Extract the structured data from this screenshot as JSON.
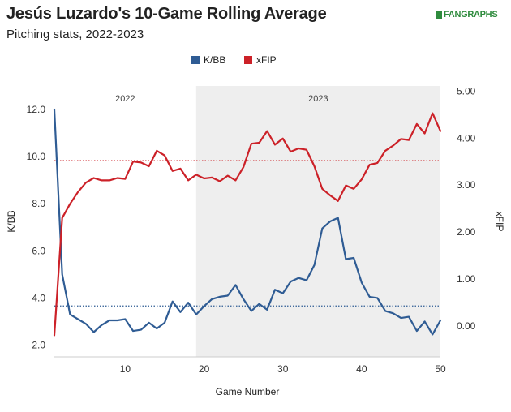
{
  "header": {
    "title": "Jesús Luzardo's 10-Game Rolling Average",
    "subtitle": "Pitching stats, 2022-2023",
    "brand": "FANGRAPHS"
  },
  "colors": {
    "kbb": "#2f5c94",
    "xfip": "#cc2128",
    "season_2023_shade": "#eeeeee"
  },
  "chart_data": {
    "type": "line",
    "xlabel": "Game Number",
    "ylabel_left": "K/BB",
    "ylabel_right": "xFIP",
    "x_ticks": [
      10,
      20,
      30,
      40,
      50
    ],
    "x_range": [
      1,
      50
    ],
    "y_left_ticks": [
      "2.0",
      "4.0",
      "6.0",
      "8.0",
      "10.0",
      "12.0"
    ],
    "y_left_range": [
      1.5,
      13.0
    ],
    "y_right_ticks": [
      "0.00",
      "1.00",
      "2.00",
      "3.00",
      "4.00",
      "5.00"
    ],
    "y_right_range": [
      -0.66,
      5.11
    ],
    "legend": {
      "position": "top-center",
      "entries": [
        "K/BB",
        "xFIP"
      ]
    },
    "seasons": [
      {
        "label": "2022",
        "start": 1,
        "end": 19
      },
      {
        "label": "2023",
        "start": 19,
        "end": 50
      }
    ],
    "x": [
      1,
      2,
      3,
      4,
      5,
      6,
      7,
      8,
      9,
      10,
      11,
      12,
      13,
      14,
      15,
      16,
      17,
      18,
      19,
      20,
      21,
      22,
      23,
      24,
      25,
      26,
      27,
      28,
      29,
      30,
      31,
      32,
      33,
      34,
      35,
      36,
      37,
      38,
      39,
      40,
      41,
      42,
      43,
      44,
      45,
      46,
      47,
      48,
      49,
      50
    ],
    "series": [
      {
        "name": "K/BB",
        "axis": "left",
        "values": [
          12.0,
          5.0,
          3.3,
          3.1,
          2.9,
          2.55,
          2.85,
          3.05,
          3.05,
          3.1,
          2.6,
          2.65,
          2.95,
          2.7,
          2.95,
          3.85,
          3.4,
          3.8,
          3.3,
          3.65,
          3.95,
          4.05,
          4.1,
          4.55,
          3.95,
          3.45,
          3.75,
          3.5,
          4.35,
          4.2,
          4.7,
          4.85,
          4.75,
          5.4,
          6.95,
          7.25,
          7.4,
          5.65,
          5.7,
          4.65,
          4.05,
          4.0,
          3.45,
          3.35,
          3.15,
          3.2,
          2.6,
          3.0,
          2.45,
          3.05
        ]
      },
      {
        "name": "xFIP",
        "axis": "right",
        "values": [
          -0.2,
          2.3,
          2.6,
          2.85,
          3.05,
          3.15,
          3.1,
          3.1,
          3.15,
          3.13,
          3.5,
          3.48,
          3.4,
          3.73,
          3.63,
          3.3,
          3.35,
          3.1,
          3.22,
          3.14,
          3.16,
          3.08,
          3.2,
          3.1,
          3.38,
          3.88,
          3.9,
          4.15,
          3.86,
          3.99,
          3.71,
          3.78,
          3.75,
          3.4,
          2.92,
          2.78,
          2.66,
          2.99,
          2.92,
          3.12,
          3.43,
          3.47,
          3.73,
          3.84,
          3.98,
          3.96,
          4.3,
          4.1,
          4.53,
          4.15
        ]
      }
    ],
    "reference_lines": [
      {
        "series": "K/BB",
        "value": 3.66,
        "style": "dotted"
      },
      {
        "series": "xFIP",
        "value": 3.52,
        "style": "dotted"
      }
    ]
  }
}
